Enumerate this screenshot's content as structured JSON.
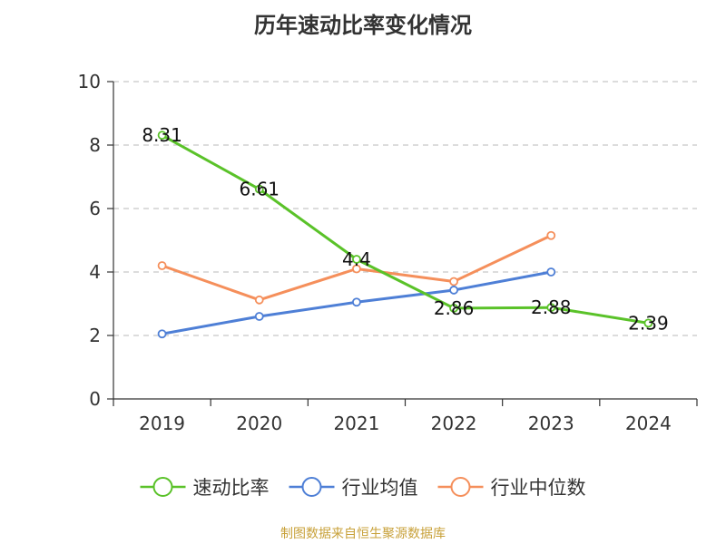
{
  "title": "历年速动比率变化情况",
  "source": "制图数据来自恒生聚源数据库",
  "chart_data": {
    "type": "line",
    "title": "历年速动比率变化情况",
    "categories": [
      "2019",
      "2020",
      "2021",
      "2022",
      "2023",
      "2024"
    ],
    "ylim": [
      0,
      10
    ],
    "yticks": [
      0,
      2,
      4,
      6,
      8,
      10
    ],
    "grid": true,
    "legend_position": "bottom",
    "series": [
      {
        "name": "速动比率",
        "color": "#5ac229",
        "values": [
          8.31,
          6.61,
          4.4,
          2.86,
          2.88,
          2.39
        ],
        "labels": [
          "8.31",
          "6.61",
          "4.4",
          "2.86",
          "2.88",
          "2.39"
        ]
      },
      {
        "name": "行业均值",
        "color": "#4e7fd6",
        "values": [
          2.05,
          2.6,
          3.05,
          3.43,
          4.0,
          null
        ]
      },
      {
        "name": "行业中位数",
        "color": "#f58f5b",
        "values": [
          4.2,
          3.12,
          4.1,
          3.7,
          5.15,
          null
        ]
      }
    ]
  }
}
